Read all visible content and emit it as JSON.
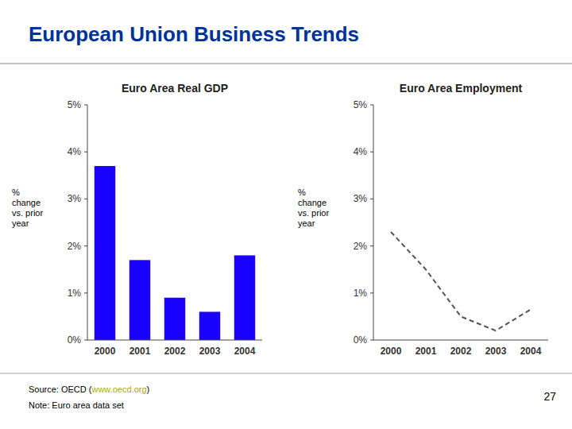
{
  "title": "European Union Business Trends",
  "source_prefix": "Source: OECD (",
  "source_link": "www.oecd.org",
  "source_suffix": ")",
  "note": "Note:  Euro area data set",
  "page_number": "27",
  "chart_data": [
    {
      "type": "bar",
      "title": "Euro Area Real GDP",
      "y_label": "% \nchange\nvs. prior\nyear",
      "categories": [
        "2000",
        "2001",
        "2002",
        "2003",
        "2004"
      ],
      "values": [
        3.7,
        1.7,
        0.9,
        0.6,
        1.8
      ],
      "color": "#1a00ff",
      "ylim": [
        0,
        5
      ],
      "yticks": [
        {
          "value": 0,
          "label": "0%"
        },
        {
          "value": 1,
          "label": "1%"
        },
        {
          "value": 2,
          "label": "2%"
        },
        {
          "value": 3,
          "label": "3%"
        },
        {
          "value": 4,
          "label": "4%"
        },
        {
          "value": 5,
          "label": "5%"
        }
      ]
    },
    {
      "type": "line",
      "title": "Euro Area Employment",
      "y_label": "% \nchange\nvs. prior\nyear",
      "categories": [
        "2000",
        "2001",
        "2002",
        "2003",
        "2004"
      ],
      "values": [
        2.3,
        1.5,
        0.5,
        0.2,
        0.65
      ],
      "color": "#555555",
      "line_style": "dashed",
      "ylim": [
        0,
        5
      ],
      "yticks": [
        {
          "value": 0,
          "label": "0%"
        },
        {
          "value": 1,
          "label": "1%"
        },
        {
          "value": 2,
          "label": "2%"
        },
        {
          "value": 3,
          "label": "3%"
        },
        {
          "value": 4,
          "label": "4%"
        },
        {
          "value": 5,
          "label": "5%"
        }
      ]
    }
  ]
}
